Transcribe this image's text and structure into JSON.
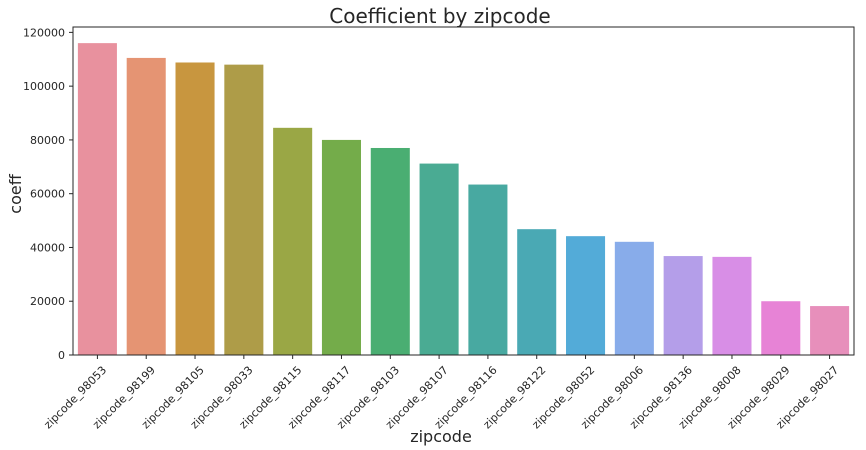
{
  "chart_data": {
    "type": "bar",
    "title": "Coefficient by zipcode",
    "xlabel": "zipcode",
    "ylabel": "coeff",
    "categories": [
      "zipcode_98053",
      "zipcode_98199",
      "zipcode_98105",
      "zipcode_98033",
      "zipcode_98115",
      "zipcode_98117",
      "zipcode_98103",
      "zipcode_98107",
      "zipcode_98116",
      "zipcode_98122",
      "zipcode_98052",
      "zipcode_98006",
      "zipcode_98136",
      "zipcode_98008",
      "zipcode_98029",
      "zipcode_98027"
    ],
    "values": [
      116000,
      110500,
      108800,
      108000,
      84500,
      80000,
      77000,
      71200,
      63400,
      46800,
      44200,
      42100,
      36800,
      36500,
      20000,
      18200
    ],
    "colors": [
      "#e8919e",
      "#e59473",
      "#c8963f",
      "#ae9c48",
      "#9aa745",
      "#74ac4a",
      "#4aae72",
      "#4aab93",
      "#48a9a1",
      "#4aa9b4",
      "#53abd8",
      "#88acea",
      "#b49ee9",
      "#d88ee6",
      "#e783d6",
      "#e78fbb"
    ],
    "ylim": [
      0,
      122000
    ],
    "yticks": [
      0,
      20000,
      40000,
      60000,
      80000,
      100000,
      120000
    ],
    "grid": false,
    "legend": "none"
  }
}
